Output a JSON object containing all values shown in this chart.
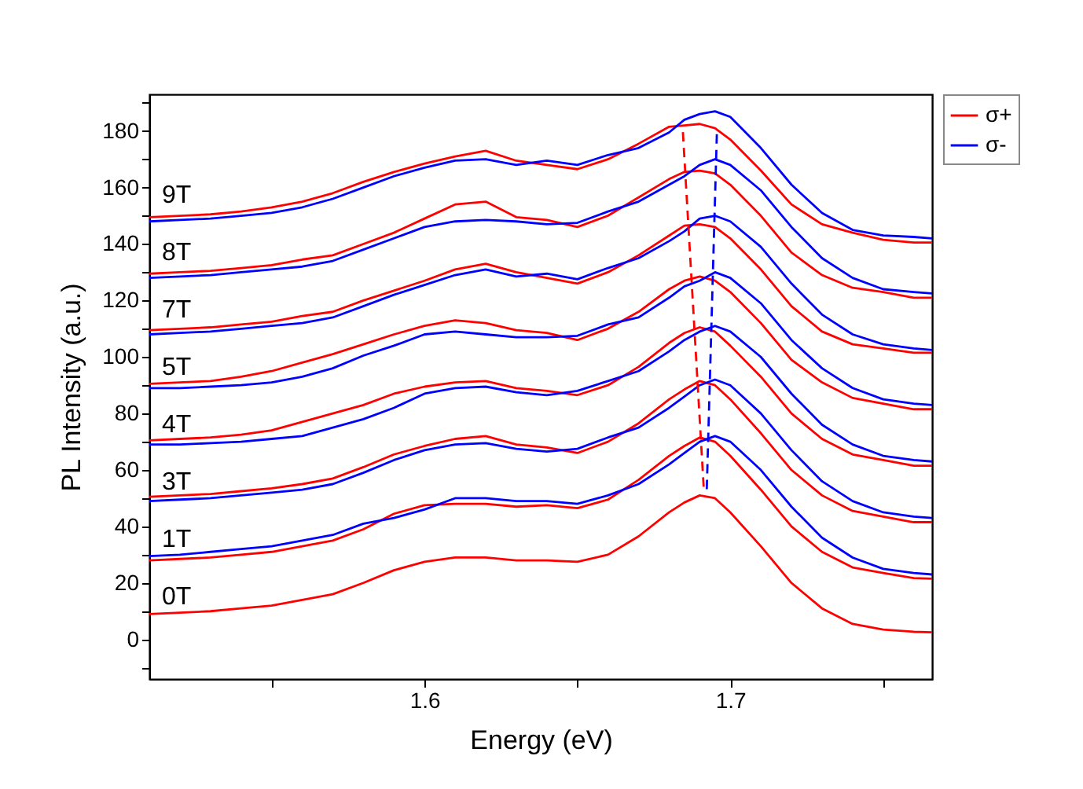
{
  "chart_data": {
    "type": "line",
    "xlabel": "Energy (eV)",
    "ylabel": "PL Intensity (a.u.)",
    "x": [
      1.51,
      1.52,
      1.53,
      1.54,
      1.55,
      1.56,
      1.57,
      1.58,
      1.59,
      1.6,
      1.61,
      1.62,
      1.63,
      1.64,
      1.65,
      1.66,
      1.67,
      1.68,
      1.685,
      1.69,
      1.695,
      1.7,
      1.71,
      1.72,
      1.73,
      1.74,
      1.75,
      1.76,
      1.766
    ],
    "xlim": [
      1.51,
      1.766
    ],
    "xticks": [
      {
        "value": 1.55,
        "label": null
      },
      1.6,
      {
        "value": 1.65,
        "label": null
      },
      1.7,
      {
        "value": 1.75,
        "label": null
      }
    ],
    "ylim": [
      -14,
      193
    ],
    "yticks": [
      {
        "value": -10,
        "label": null
      },
      0,
      {
        "value": 10,
        "label": null
      },
      20,
      {
        "value": 30,
        "label": null
      },
      40,
      {
        "value": 50,
        "label": null
      },
      60,
      {
        "value": 70,
        "label": null
      },
      80,
      {
        "value": 90,
        "label": null
      },
      100,
      {
        "value": 110,
        "label": null
      },
      120,
      {
        "value": 130,
        "label": null
      },
      140,
      {
        "value": 150,
        "label": null
      },
      160,
      {
        "value": 170,
        "label": null
      },
      180,
      {
        "value": 190,
        "label": null
      }
    ],
    "grid": false,
    "legend": "top right",
    "marker": "none",
    "line_style": "solid",
    "series": [
      {
        "name": "σ+",
        "color": "#ff0000",
        "values": [
          9,
          9.5,
          10,
          11,
          12,
          14,
          16,
          20,
          24.5,
          27.5,
          29,
          29,
          28,
          28,
          27.5,
          30,
          36.5,
          45,
          48.5,
          51,
          50,
          45,
          33,
          20,
          11,
          5.5,
          3.5,
          2.7,
          2.5
        ]
      },
      {
        "color": "#ff0000",
        "values": [
          28,
          28.5,
          29,
          30,
          31,
          33,
          35,
          39,
          44.5,
          47.5,
          48,
          48,
          47,
          47.5,
          46.5,
          49.5,
          56.5,
          65,
          68.5,
          71.5,
          70,
          65,
          53,
          40,
          31,
          25.5,
          23.5,
          21.7,
          21.5
        ]
      },
      {
        "name": "σ-",
        "color": "#0000ff",
        "values": [
          29.5,
          30,
          31,
          32,
          33,
          35,
          37,
          41,
          43,
          46,
          50,
          50,
          49,
          49,
          48,
          51,
          55,
          62,
          66,
          70,
          72,
          70,
          60,
          47,
          36,
          29,
          25,
          23.5,
          23
        ]
      },
      {
        "color": "#ff0000",
        "values": [
          50.5,
          51,
          51.5,
          52.5,
          53.5,
          55,
          57,
          61,
          65.5,
          68.5,
          71,
          72,
          69,
          68,
          66,
          70,
          76.5,
          85,
          88.5,
          91.5,
          90,
          85,
          73,
          60,
          51,
          45.5,
          43.5,
          41.5,
          41.5
        ]
      },
      {
        "color": "#0000ff",
        "values": [
          49,
          49.5,
          50,
          51,
          52,
          53,
          55,
          59,
          63.5,
          67,
          69,
          69.5,
          67.5,
          66.5,
          67.5,
          71.5,
          75,
          82,
          86,
          90,
          92,
          90,
          80,
          67,
          56,
          49,
          45,
          43.5,
          43
        ]
      },
      {
        "color": "#ff0000",
        "values": [
          70.5,
          71,
          71.5,
          72.5,
          74,
          77,
          80,
          83,
          87,
          89.5,
          91,
          91.5,
          89,
          88,
          86.5,
          90,
          96.5,
          105,
          108.5,
          110.5,
          109,
          104,
          93,
          80,
          71,
          65.5,
          63.5,
          61.5,
          61.5
        ]
      },
      {
        "color": "#0000ff",
        "values": [
          69,
          69,
          69.5,
          70,
          71,
          72,
          75,
          78,
          82,
          87,
          89,
          89.5,
          87.5,
          86.5,
          88,
          91.5,
          95,
          102,
          106,
          109,
          111,
          109,
          100,
          87,
          76,
          69,
          65,
          63.5,
          63
        ]
      },
      {
        "color": "#ff0000",
        "values": [
          90.5,
          91,
          91.5,
          93,
          95,
          98,
          101,
          104.5,
          108,
          111,
          113,
          112,
          109.5,
          108.5,
          106,
          110,
          116,
          124,
          127,
          128.5,
          127,
          123,
          112,
          99,
          91,
          85.5,
          83.5,
          81.5,
          81.5
        ]
      },
      {
        "color": "#0000ff",
        "values": [
          89,
          89,
          89.5,
          90,
          91,
          93,
          96,
          100.5,
          104,
          108,
          109,
          108,
          107,
          107,
          107.5,
          111.5,
          114,
          121,
          125,
          127,
          130,
          128,
          119,
          106,
          96,
          89,
          85,
          83.5,
          83
        ]
      },
      {
        "color": "#ff0000",
        "values": [
          109.5,
          110,
          110.5,
          111.5,
          112.5,
          114.5,
          116,
          120,
          123.5,
          127,
          131,
          133,
          130,
          128,
          126,
          130,
          136,
          143,
          146.5,
          147,
          146,
          142,
          131,
          118,
          109,
          104.5,
          103,
          101.5,
          101.5
        ]
      },
      {
        "color": "#0000ff",
        "values": [
          108,
          108.5,
          109,
          110,
          111,
          112,
          114,
          118,
          122,
          125.5,
          129,
          131,
          128.5,
          129.5,
          127.5,
          131.5,
          135,
          141,
          144.5,
          149,
          150,
          148,
          139,
          126,
          115,
          108,
          104.5,
          103,
          102.5
        ]
      },
      {
        "color": "#ff0000",
        "values": [
          129.5,
          130,
          130.5,
          131.5,
          132.5,
          134.5,
          136,
          140,
          144,
          149,
          154,
          155,
          149.5,
          148.5,
          146,
          150,
          156.5,
          163,
          165.5,
          166,
          165,
          161,
          150,
          137,
          129,
          124.5,
          123,
          121,
          121
        ]
      },
      {
        "color": "#0000ff",
        "values": [
          128,
          128.5,
          129,
          130,
          131,
          132,
          134,
          138,
          142,
          146,
          148,
          148.5,
          148,
          147,
          147.5,
          151.5,
          155,
          161,
          164,
          168,
          170,
          168,
          159,
          146,
          135,
          128,
          124,
          123,
          122.5
        ]
      },
      {
        "color": "#ff0000",
        "values": [
          149.5,
          150,
          150.5,
          151.5,
          153,
          155,
          158,
          162,
          165.5,
          168.5,
          171,
          173,
          169.5,
          168,
          166.5,
          170,
          175.5,
          181.5,
          182,
          182.5,
          181,
          177,
          166,
          154,
          147,
          144,
          141.5,
          140.5,
          140.5
        ]
      },
      {
        "color": "#0000ff",
        "values": [
          148,
          148.5,
          149,
          150,
          151,
          153,
          156,
          160,
          164,
          167,
          169.5,
          170,
          168,
          169.5,
          168,
          171.5,
          174,
          179.5,
          184,
          186,
          187,
          185,
          174,
          161,
          151,
          145,
          143,
          142.5,
          142
        ]
      },
      {
        "type": "line",
        "line_style": "dashed",
        "color": "#ff0000",
        "x": [
          1.6845,
          1.6914
        ],
        "values": [
          179.6,
          52
        ]
      },
      {
        "type": "line",
        "line_style": "dashed",
        "color": "#0000ff",
        "x": [
          1.6956,
          1.6923
        ],
        "values": [
          178.9,
          53
        ]
      }
    ],
    "annotations": [
      "9T",
      "8T",
      "7T",
      "5T",
      "4T",
      "3T",
      "1T",
      "0T"
    ]
  }
}
